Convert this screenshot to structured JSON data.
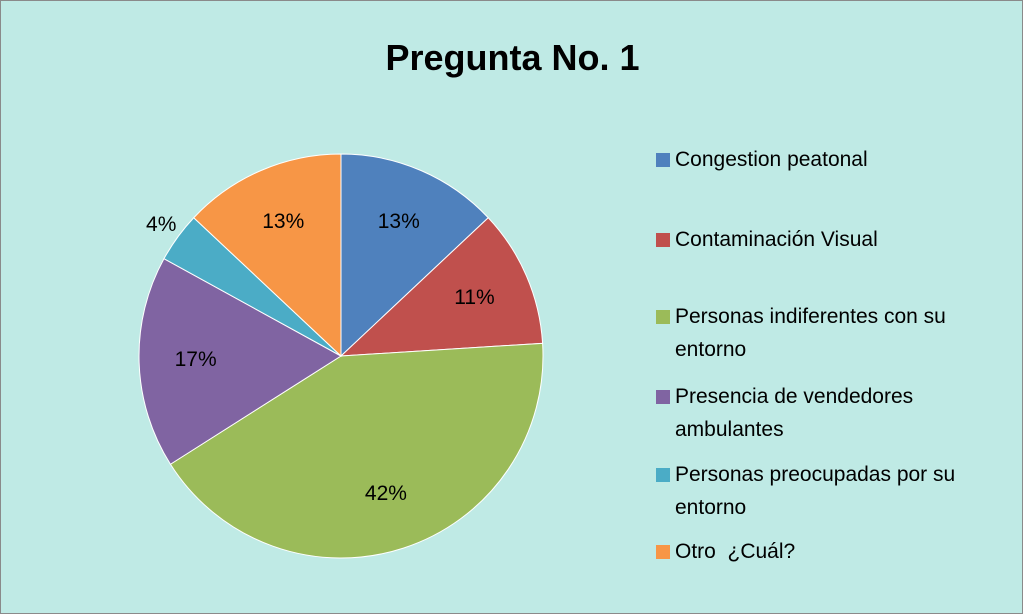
{
  "chart_data": {
    "type": "pie",
    "title": "Pregunta No. 1",
    "categories": [
      "Congestion peatonal",
      "Contaminación Visual",
      "Personas indiferentes con su entorno",
      "Presencia de vendedores ambulantes",
      "Personas preocupadas por su entorno",
      "Otro  ¿Cuál?"
    ],
    "values": [
      13,
      11,
      42,
      17,
      4,
      13
    ],
    "value_labels": [
      "13%",
      "11%",
      "42%",
      "17%",
      "4%",
      "13%"
    ],
    "colors": [
      "#4f81bd",
      "#c0504d",
      "#9bbb59",
      "#8064a2",
      "#4bacc6",
      "#f79646"
    ],
    "legend": "right"
  }
}
